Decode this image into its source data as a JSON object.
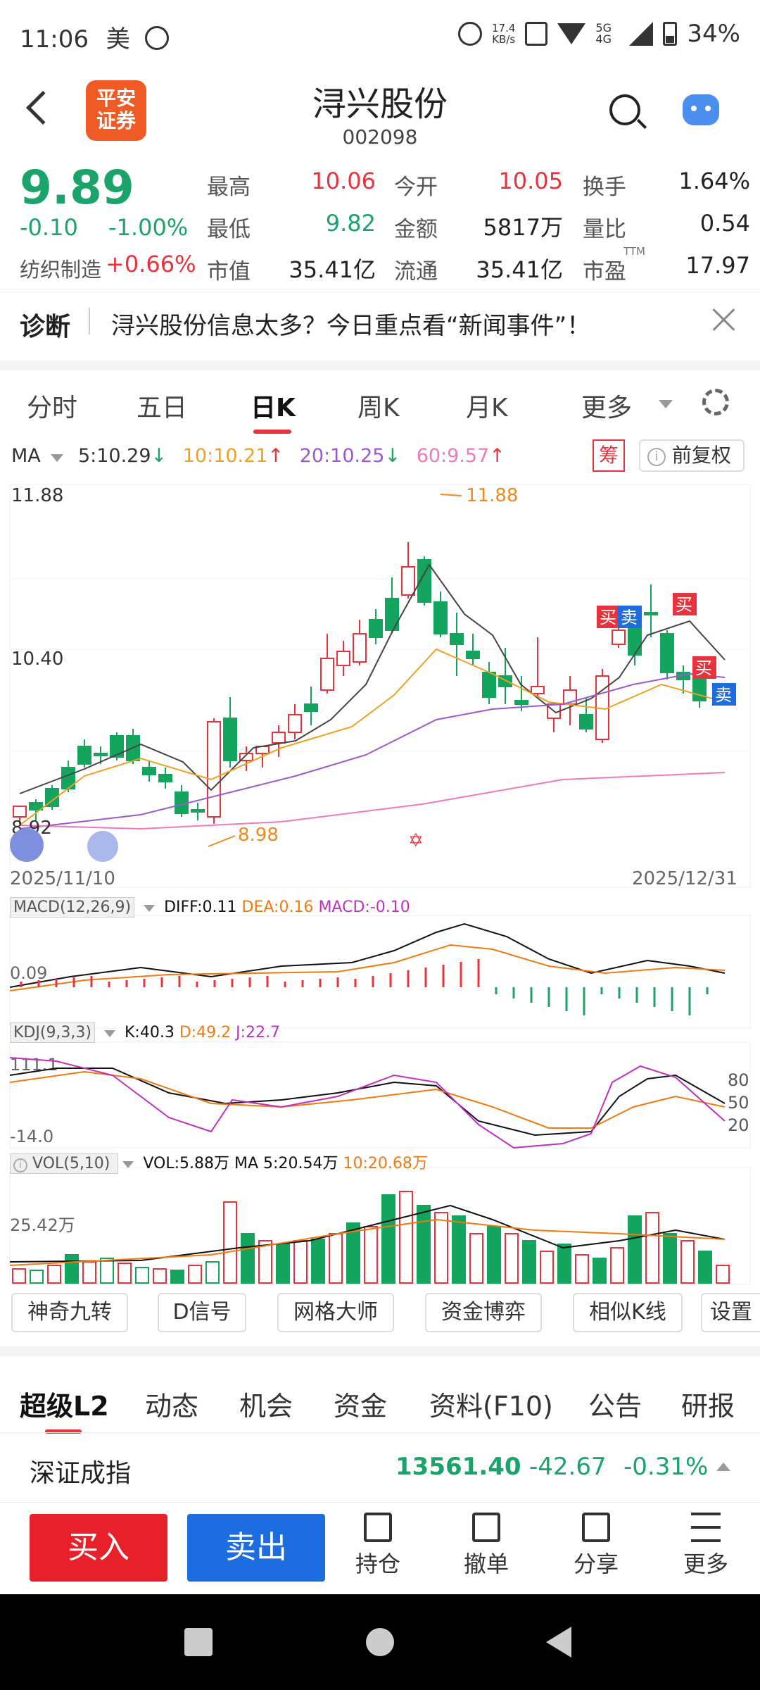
{
  "status_bar": {
    "time": "11:06",
    "carrier_icon_text": "美",
    "net_speed": "17.4",
    "net_unit": "KB/s",
    "network": "5G 4G",
    "battery": "34%"
  },
  "header": {
    "logo_line1": "平安",
    "logo_line2": "证券",
    "stock_name": "浔兴股份",
    "stock_code": "002098"
  },
  "quote": {
    "price": "9.89",
    "change": "-0.10",
    "change_pct": "-1.00%",
    "sector": "纺织制造",
    "sector_pct": "+0.66%",
    "high_label": "最高",
    "high": "10.06",
    "low_label": "最低",
    "low": "9.82",
    "mcap_label": "市值",
    "mcap": "35.41亿",
    "open_label": "今开",
    "open": "10.05",
    "amount_label": "金额",
    "amount": "5817万",
    "float_label": "流通",
    "float": "35.41亿",
    "turnover_label": "换手",
    "turnover": "1.64%",
    "vol_ratio_label": "量比",
    "vol_ratio": "0.54",
    "pe_label": "市盈",
    "pe_sup": "TTM",
    "pe": "17.97"
  },
  "diagnosis": {
    "label": "诊断",
    "text": "浔兴股份信息太多？今日重点看“新闻事件”！"
  },
  "period_tabs": [
    "分时",
    "五日",
    "日K",
    "周K",
    "月K",
    "更多"
  ],
  "active_period_index": 2,
  "ma_bar": {
    "label": "MA",
    "ma5": "5:10.29",
    "ma10": "10:10.21",
    "ma20": "20:10.25",
    "ma60": "60:9.57",
    "chip": "筹",
    "adjust": "前复权"
  },
  "chart": {
    "y_high": "11.88",
    "y_mid": "10.40",
    "y_low": "8.92",
    "max_mark": "11.88",
    "min_mark": "8.98",
    "date_start": "2025/11/10",
    "date_end": "2025/12/31",
    "buy_label": "买",
    "sell_label": "卖",
    "colors": {
      "up": "#e8323c",
      "down": "#13a45e",
      "ma5": "#444444",
      "ma10": "#f0a020",
      "ma20": "#9b59d0",
      "ma60": "#f07ab8"
    }
  },
  "macd": {
    "label": "MACD(12,26,9)",
    "diff": "DIFF:0.11",
    "dea": "DEA:0.16",
    "macd": "MACD:-0.10",
    "axis_mid": "0.09"
  },
  "kdj": {
    "label": "KDJ(9,3,3)",
    "k": "K:40.3",
    "d": "D:49.2",
    "j": "J:22.7",
    "axis_top": "111.1",
    "axis_bottom": "-14.0",
    "r80": "80",
    "r50": "50",
    "r20": "20"
  },
  "vol": {
    "label": "VOL(5,10)",
    "vol": "VOL:5.88万",
    "ma5": "MA 5:20.54万",
    "ma10": "10:20.68万",
    "axis": "25.42万"
  },
  "tools": [
    "神奇九转",
    "D信号",
    "网格大师",
    "资金博弈",
    "相似K线",
    "设置"
  ],
  "l2_tabs": [
    "超级L2",
    "动态",
    "机会",
    "资金",
    "资料(F10)",
    "公告",
    "研报"
  ],
  "index": {
    "name": "深证成指",
    "value": "13561.40",
    "change": "-42.67",
    "pct": "-0.31%"
  },
  "bottom_bar": {
    "buy": "买入",
    "sell": "卖出",
    "position": "持仓",
    "cancel": "撤单",
    "share": "分享",
    "more": "更多"
  }
}
